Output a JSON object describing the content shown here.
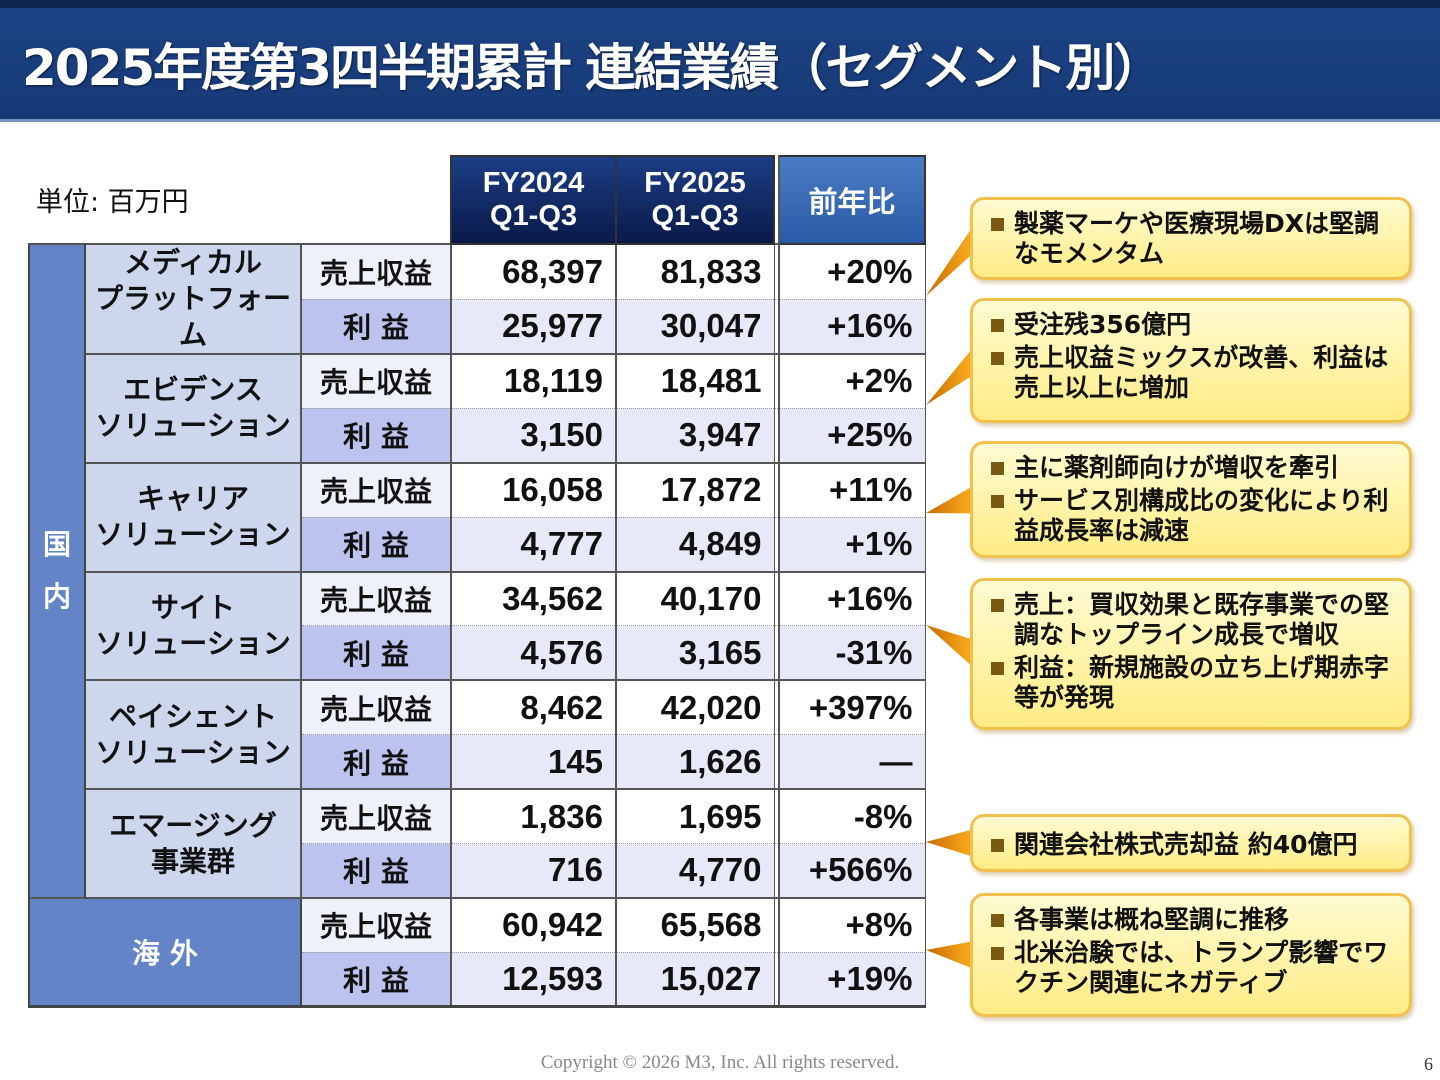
{
  "title": "2025年度第3四半期累計 連結業績（セグメント別）",
  "unit": "単位: 百万円",
  "columns": {
    "fy2024": [
      "FY2024",
      "Q1-Q3"
    ],
    "fy2025": [
      "FY2025",
      "Q1-Q3"
    ],
    "yoy": "前年比"
  },
  "domestic_label": [
    "国",
    "内"
  ],
  "row_labels": {
    "sales": "売上収益",
    "profit": "利 益"
  },
  "segments": [
    {
      "name": [
        "メディカル",
        "プラットフォーム"
      ],
      "sales": [
        "68,397",
        "81,833",
        "+20%"
      ],
      "profit": [
        "25,977",
        "30,047",
        "+16%"
      ]
    },
    {
      "name": [
        "エビデンス",
        "ソリューション"
      ],
      "sales": [
        "18,119",
        "18,481",
        "+2%"
      ],
      "profit": [
        "3,150",
        "3,947",
        "+25%"
      ]
    },
    {
      "name": [
        "キャリア",
        "ソリューション"
      ],
      "sales": [
        "16,058",
        "17,872",
        "+11%"
      ],
      "profit": [
        "4,777",
        "4,849",
        "+1%"
      ]
    },
    {
      "name": [
        "サイト",
        "ソリューション"
      ],
      "sales": [
        "34,562",
        "40,170",
        "+16%"
      ],
      "profit": [
        "4,576",
        "3,165",
        "-31%"
      ]
    },
    {
      "name": [
        "ペイシェント",
        "ソリューション"
      ],
      "sales": [
        "8,462",
        "42,020",
        "+397%"
      ],
      "profit": [
        "145",
        "1,626",
        "—"
      ]
    },
    {
      "name": [
        "エマージング",
        "事業群"
      ],
      "sales": [
        "1,836",
        "1,695",
        "-8%"
      ],
      "profit": [
        "716",
        "4,770",
        "+566%"
      ]
    }
  ],
  "overseas": {
    "name": "海 外",
    "sales": [
      "60,942",
      "65,568",
      "+8%"
    ],
    "profit": [
      "12,593",
      "15,027",
      "+19%"
    ]
  },
  "callouts": [
    [
      "製薬マーケや医療現場DXは堅調なモメンタム"
    ],
    [
      "受注残356億円",
      "売上収益ミックスが改善、利益は売上以上に増加"
    ],
    [
      "主に薬剤師向けが増収を牽引",
      "サービス別構成比の変化により利益成長率は減速"
    ],
    [
      "売上：買収効果と既存事業での堅調なトップライン成長で増収",
      "利益：新規施設の立ち上げ期赤字等が発現"
    ],
    [
      "関連会社株式売却益 約40億円"
    ],
    [
      "各事業は概ね堅調に推移",
      "北米治験では、トランプ影響でワクチン関連にネガティブ"
    ]
  ],
  "colors": {
    "title_bar": "#1d4283",
    "header_dark": "#0a1a4a",
    "domestic": "#6384c6",
    "callout_fill": "#fff3a8",
    "callout_border": "#f2c04c"
  },
  "footer": {
    "copyright": "Copyright © 2026  M3, Inc.  All rights reserved.",
    "page": "6"
  }
}
